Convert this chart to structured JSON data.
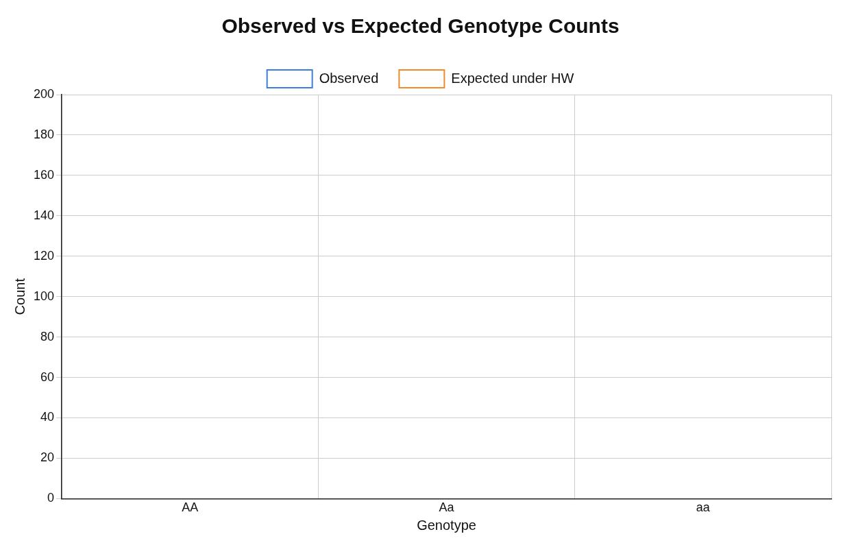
{
  "chart_data": {
    "type": "bar",
    "title": "Observed vs Expected Genotype Counts",
    "xlabel": "Genotype",
    "ylabel": "Count",
    "categories": [
      "AA",
      "Aa",
      "aa"
    ],
    "series": [
      {
        "name": "Observed",
        "color": "#3b7de0",
        "values": [
          null,
          null,
          null
        ]
      },
      {
        "name": "Expected under HW",
        "color": "#f5892a",
        "values": [
          null,
          null,
          null
        ]
      }
    ],
    "ylim": [
      0,
      200
    ],
    "yticks": [
      0,
      20,
      40,
      60,
      80,
      100,
      120,
      140,
      160,
      180,
      200
    ],
    "grid": true,
    "legend": "top"
  }
}
